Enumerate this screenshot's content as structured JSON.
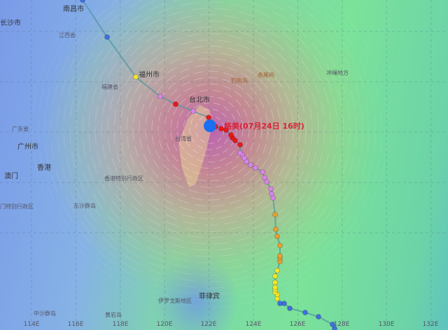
{
  "storm": {
    "label": "格美(07月24日 16时)"
  },
  "places": {
    "nanchang": "南昌市",
    "changsha": "长沙市",
    "jiangxi": "江西省",
    "fuzhou": "福州市",
    "fujian": "福建省",
    "taibei": "台北市",
    "taiwan": "台湾省",
    "guangdong": "广东省",
    "guangzhou": "广州市",
    "macau": "澳门",
    "hongkong": "香港",
    "hk_sar": "香港特别行政区",
    "macau_sar": "门特别行政区",
    "dongsha": "东沙群岛",
    "zhongsha": "中沙群岛",
    "huangyan": "黄岩岛",
    "philippines": "菲律宾",
    "ilocos": "伊罗戈斯地区",
    "diaoyu": "钓鱼岛",
    "chiwei": "赤尾屿",
    "okinawa": "冲绳地方"
  },
  "axis": {
    "lon_labels": [
      "114E",
      "116E",
      "118E",
      "120E",
      "122E",
      "124E",
      "126E",
      "128E",
      "130E",
      "132E"
    ]
  },
  "track_colors": {
    "blue": "#3f6fe0",
    "yellow": "#f5e52a",
    "orange": "#e8a030",
    "violet": "#d884e8",
    "red": "#e81818",
    "center": "#1a6ef0"
  }
}
